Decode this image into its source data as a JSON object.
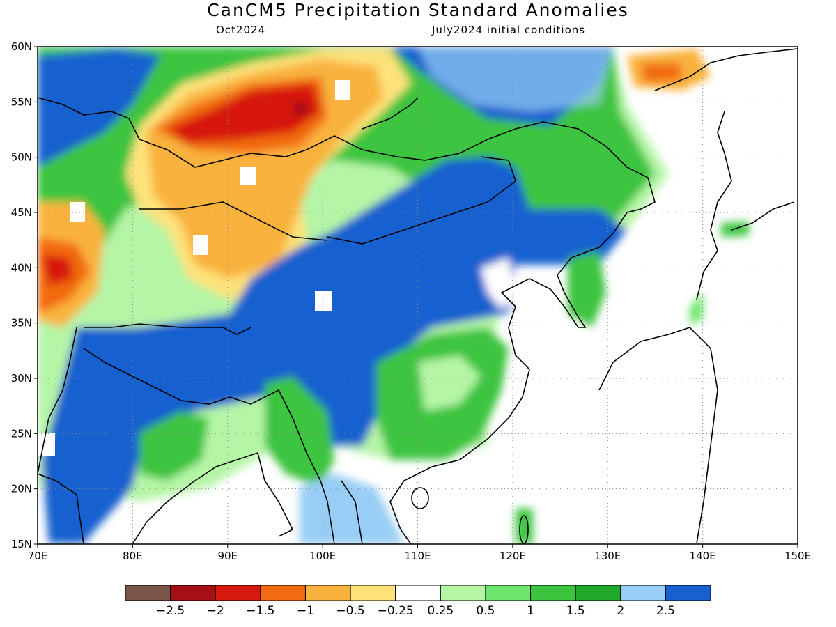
{
  "title": "CanCM5 Precipitation Standard Anomalies",
  "subtitle_left": "Oct2024",
  "subtitle_right": "July2024 initial conditions",
  "map": {
    "lon_range": [
      70,
      150
    ],
    "lat_range": [
      15,
      60
    ],
    "lon_ticks": [
      "70E",
      "80E",
      "90E",
      "100E",
      "110E",
      "120E",
      "130E",
      "140E",
      "150E"
    ],
    "lat_ticks": [
      "15N",
      "20N",
      "25N",
      "30N",
      "35N",
      "40N",
      "45N",
      "50N",
      "55N",
      "60N"
    ],
    "grid": "dotted"
  },
  "colorbar": {
    "colors": [
      "#7a5548",
      "#a50f15",
      "#d7190e",
      "#f26a11",
      "#f9b23d",
      "#fde27a",
      "#ffffff",
      "#b5f5a6",
      "#6de66b",
      "#3cc43f",
      "#1fa82a",
      "#98cef5",
      "#1760cf"
    ],
    "labels": [
      "−2.5",
      "−2",
      "−1.5",
      "−1",
      "−0.5",
      "−0.25",
      "0.25",
      "0.5",
      "1",
      "1.5",
      "2",
      "2.5"
    ]
  }
}
